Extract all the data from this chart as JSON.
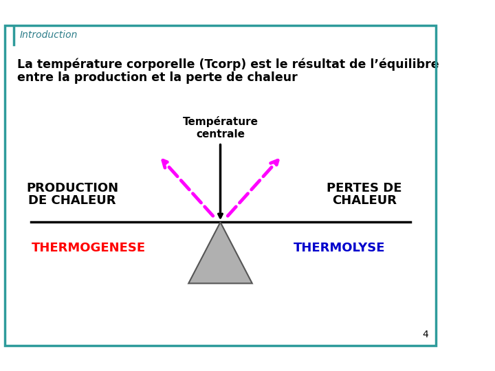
{
  "title": "Introduction",
  "body_text_line1": "La température corporelle (Tcorp) est le résultat de l’équilibre",
  "body_text_line2": "entre la production et la perte de chaleur",
  "temp_centrale_line1": "Température",
  "temp_centrale_line2": "centrale",
  "production_text_line1": "PRODUCTION",
  "production_text_line2": "DE CHALEUR",
  "pertes_text_line1": "PERTES DE",
  "pertes_text_line2": "CHALEUR",
  "thermogenese": "THERMOGENESE",
  "thermolyse": "THERMOLYSE",
  "page_number": "4",
  "border_color": "#2E9B9B",
  "title_color": "#2E7E8A",
  "thermogenese_color": "#FF0000",
  "thermolyse_color": "#0000CC",
  "body_text_color": "#000000",
  "production_color": "#000000",
  "pertes_color": "#000000",
  "arrow_color": "#FF00FF",
  "bg_color": "#FFFFFF",
  "vertical_arrow_color": "#000000",
  "triangle_color": "#B0B0B0",
  "triangle_edge_color": "#555555",
  "horizontal_line_color": "#000000"
}
